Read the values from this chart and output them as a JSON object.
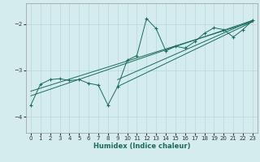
{
  "xlabel": "Humidex (Indice chaleur)",
  "bg_color": "#d4ecee",
  "grid_color": "#b8d8dc",
  "line_color": "#1a6b5a",
  "xlim": [
    -0.5,
    23.5
  ],
  "ylim": [
    -4.35,
    -1.55
  ],
  "yticks": [
    -4,
    -3,
    -2
  ],
  "xticks": [
    0,
    1,
    2,
    3,
    4,
    5,
    6,
    7,
    8,
    9,
    10,
    11,
    12,
    13,
    14,
    15,
    16,
    17,
    18,
    19,
    20,
    21,
    22,
    23
  ],
  "lines": [
    {
      "x": [
        0,
        1,
        2,
        3,
        4,
        5,
        6,
        7,
        8,
        9,
        10,
        11,
        12,
        13,
        14,
        15,
        16,
        17,
        18,
        19,
        20,
        21,
        22,
        23
      ],
      "y": [
        -3.75,
        -3.3,
        -3.2,
        -3.18,
        -3.22,
        -3.2,
        -3.28,
        -3.32,
        -3.75,
        -3.35,
        -2.78,
        -2.68,
        -1.88,
        -2.1,
        -2.58,
        -2.48,
        -2.52,
        -2.38,
        -2.2,
        -2.08,
        -2.12,
        -2.28,
        -2.12,
        -1.92
      ],
      "marker": true
    },
    {
      "x": [
        0,
        23
      ],
      "y": [
        -3.55,
        -1.92
      ],
      "marker": false
    },
    {
      "x": [
        0,
        23
      ],
      "y": [
        -3.45,
        -1.95
      ],
      "marker": false
    },
    {
      "x": [
        9,
        23
      ],
      "y": [
        -3.35,
        -1.95
      ],
      "marker": false
    },
    {
      "x": [
        9,
        23
      ],
      "y": [
        -3.2,
        -1.92
      ],
      "marker": false
    }
  ]
}
